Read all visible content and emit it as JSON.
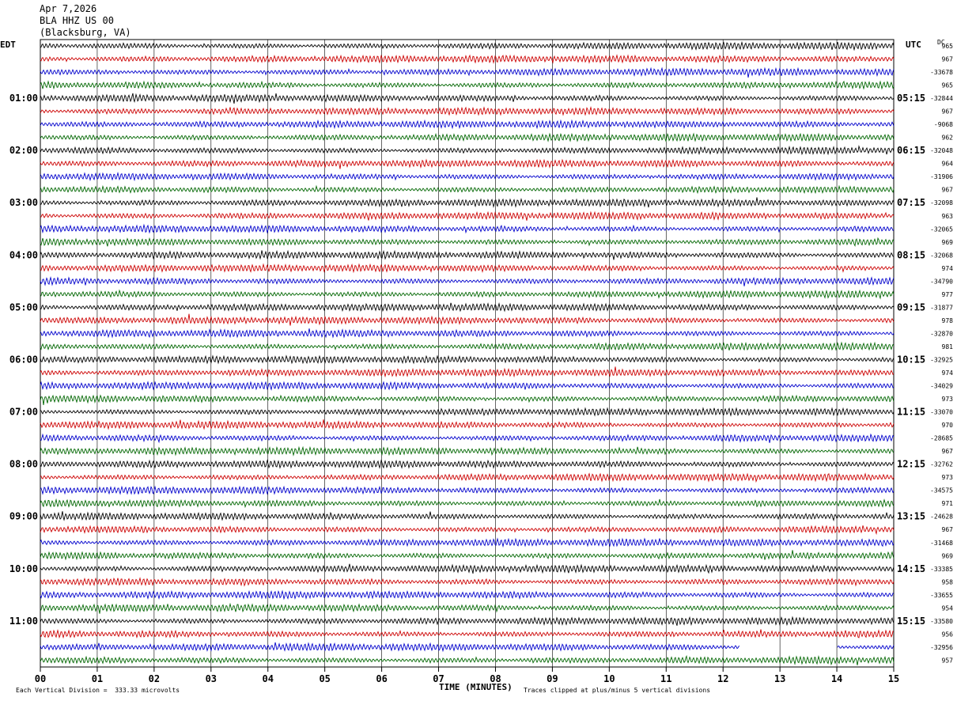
{
  "header": {
    "date": "Apr 7,2026",
    "station": "BLA HHZ US 00",
    "location": "(Blacksburg, VA)"
  },
  "labels": {
    "left_tz": "EDT",
    "right_tz": "UTC",
    "dc": "DC",
    "xlabel": "TIME (MINUTES)",
    "scale_note": "Each Vertical Division =  333.33 microvolts",
    "clip_note": "Traces clipped at plus/minus 5 vertical divisions"
  },
  "chart_data": {
    "type": "line",
    "title": "",
    "xlabel": "TIME (MINUTES)",
    "xlim": [
      0,
      15
    ],
    "x_ticks": [
      "00",
      "01",
      "02",
      "03",
      "04",
      "05",
      "06",
      "07",
      "08",
      "09",
      "10",
      "11",
      "12",
      "13",
      "14",
      "15"
    ],
    "left_times": [
      "01:00",
      "02:00",
      "03:00",
      "04:00",
      "05:00",
      "06:00",
      "07:00",
      "08:00",
      "09:00",
      "10:00",
      "11:00"
    ],
    "right_times": [
      "05:15",
      "06:15",
      "07:15",
      "08:15",
      "09:15",
      "10:15",
      "11:15",
      "12:15",
      "13:15",
      "14:15",
      "15:15"
    ],
    "trace_colors": [
      "#000000",
      "#cc0000",
      "#0000cc",
      "#006600"
    ],
    "dc_offsets": [
      "965",
      "967",
      "-33678",
      "965",
      "-32844",
      "967",
      "-9068",
      "962",
      "-32048",
      "964",
      "-31906",
      "967",
      "-32098",
      "963",
      "-32065",
      "969",
      "-32068",
      "974",
      "-34790",
      "977",
      "-31877",
      "978",
      "-32870",
      "981",
      "-32925",
      "974",
      "-34029",
      "973",
      "-33070",
      "970",
      "-28685",
      "967",
      "-32762",
      "973",
      "-34575",
      "971",
      "-24628",
      "967",
      "-31468",
      "969",
      "-33385",
      "958",
      "-33655",
      "954",
      "-33580",
      "956",
      "-32956",
      "957"
    ],
    "gap": {
      "trace_index": 46,
      "from_minute": 12.3,
      "to_minute": 14.0
    }
  }
}
